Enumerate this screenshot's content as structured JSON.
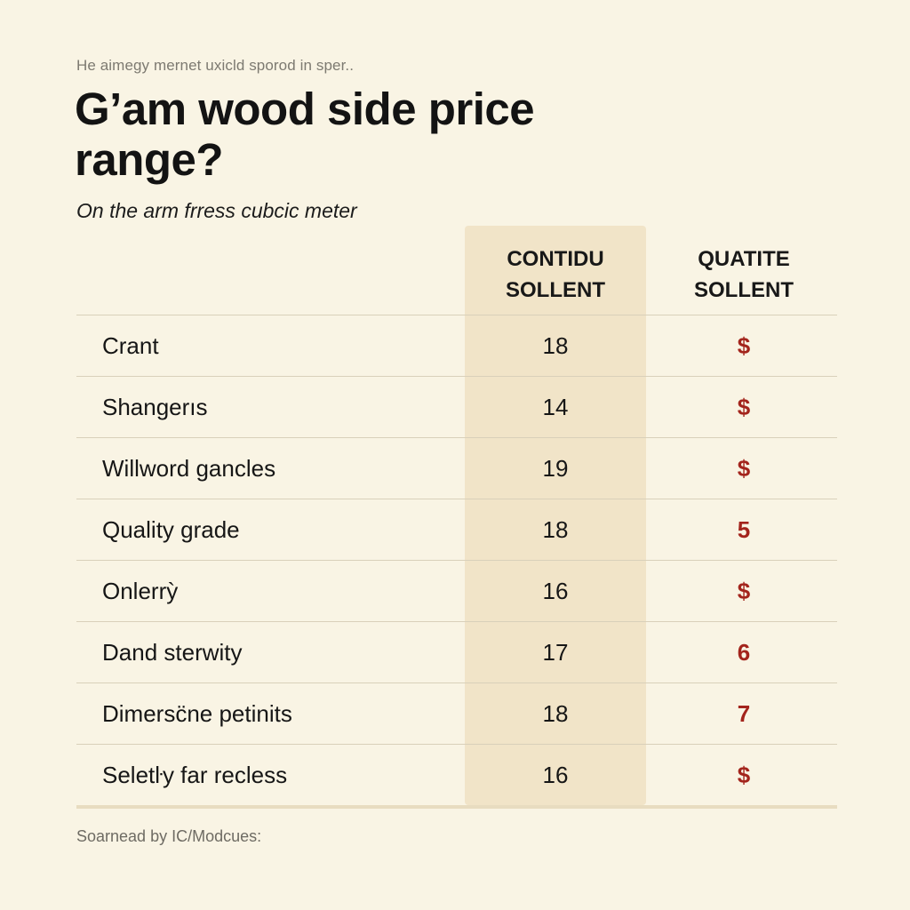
{
  "header": {
    "kicker": "He aimegy mernet uxicld sporod in sper..",
    "title": "G’am wood side price range?",
    "subtitle": "On the arm frress cubcic meter"
  },
  "footer": {
    "source": "Soarnead by IC/Modcues:"
  },
  "colors": {
    "background": "#f9f4e4",
    "highlight_column": "#f1e4c8",
    "accent_red": "#a3241c"
  },
  "chart_data": {
    "type": "table",
    "columns": [
      "",
      "CONTIDU\nSOLLENT",
      "QUATITE\nSOLLENT"
    ],
    "rows": [
      {
        "label": "Crant",
        "value": "18",
        "price": "$"
      },
      {
        "label": "Shangerıs",
        "value": "14",
        "price": "$"
      },
      {
        "label": "Willword gancles",
        "value": "19",
        "price": "$"
      },
      {
        "label": "Quality grade",
        "value": "18",
        "price": "5"
      },
      {
        "label": "Onlerrỳ",
        "value": "16",
        "price": "$"
      },
      {
        "label": "Dand sterwity",
        "value": "17",
        "price": "6"
      },
      {
        "label": "Dimersc̈ne petinits",
        "value": "18",
        "price": "7"
      },
      {
        "label": "Seletŀy far recless",
        "value": "16",
        "price": "$"
      }
    ]
  }
}
